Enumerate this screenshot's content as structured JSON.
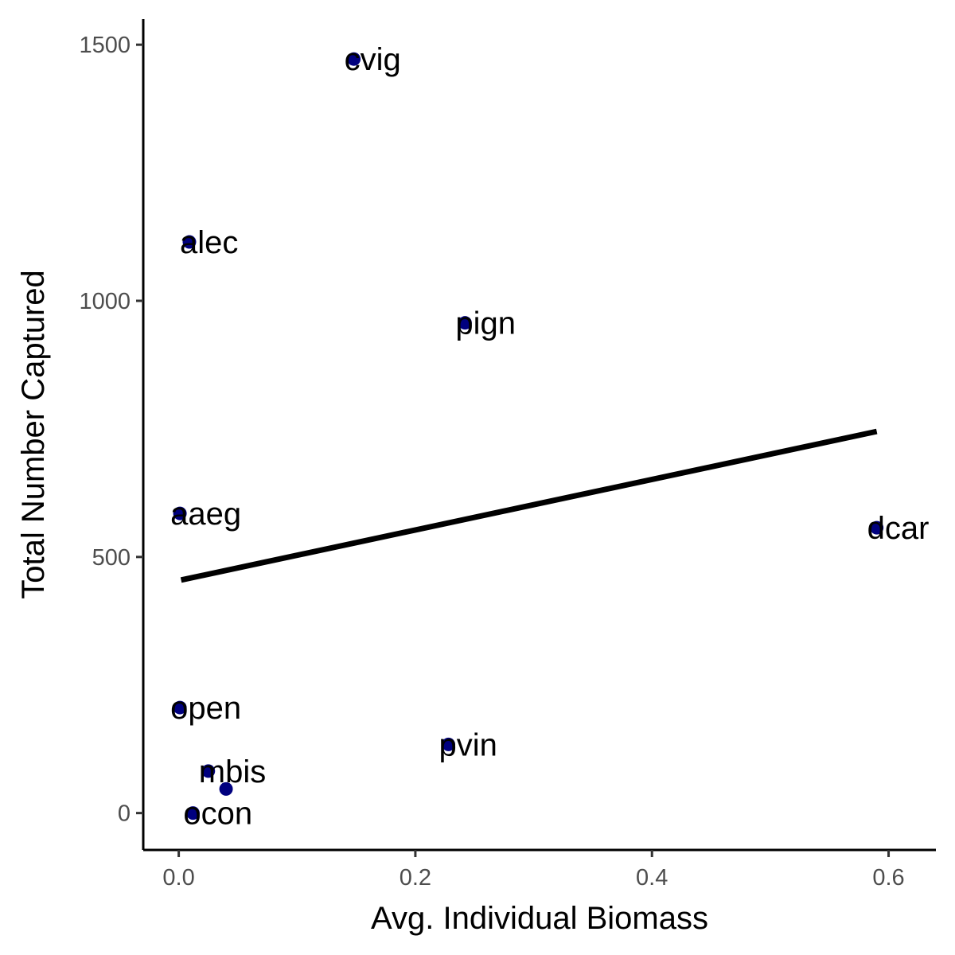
{
  "chart_data": {
    "type": "scatter",
    "title": "",
    "xlabel": "Avg. Individual Biomass",
    "ylabel": "Total Number Captured",
    "xlim": [
      -0.03,
      0.64
    ],
    "ylim": [
      -72,
      1550
    ],
    "x_ticks": [
      0.0,
      0.2,
      0.4,
      0.6
    ],
    "x_tick_labels": [
      "0.0",
      "0.2",
      "0.4",
      "0.6"
    ],
    "y_ticks": [
      0,
      500,
      1000,
      1500
    ],
    "y_tick_labels": [
      "0",
      "500",
      "1000",
      "1500"
    ],
    "grid": false,
    "legend": "none",
    "point_color": "#00007f",
    "line_color": "#000000",
    "points": [
      {
        "label": "cvig",
        "x": 0.148,
        "y": 1472
      },
      {
        "label": "alec",
        "x": 0.009,
        "y": 1115
      },
      {
        "label": "pign",
        "x": 0.242,
        "y": 957
      },
      {
        "label": "aaeg",
        "x": 0.001,
        "y": 585
      },
      {
        "label": "dcar",
        "x": 0.59,
        "y": 557
      },
      {
        "label": "open",
        "x": 0.001,
        "y": 206
      },
      {
        "label": "pvin",
        "x": 0.228,
        "y": 134
      },
      {
        "label": "mbis",
        "x": 0.025,
        "y": 82
      },
      {
        "label": "",
        "x": 0.04,
        "y": 47
      },
      {
        "label": "ocon",
        "x": 0.012,
        "y": 0
      }
    ],
    "trend_line": {
      "x": [
        0.002,
        0.59
      ],
      "y": [
        455,
        745
      ]
    }
  }
}
